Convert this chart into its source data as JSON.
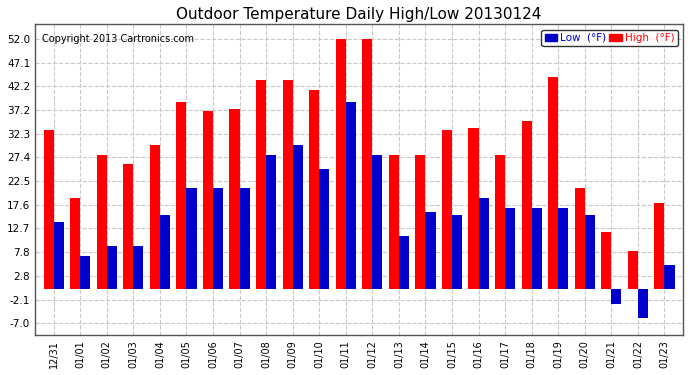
{
  "title": "Outdoor Temperature Daily High/Low 20130124",
  "copyright": "Copyright 2013 Cartronics.com",
  "legend_low": "Low  (°F)",
  "legend_high": "High  (°F)",
  "dates": [
    "12/31",
    "01/01",
    "01/02",
    "01/03",
    "01/04",
    "01/05",
    "01/06",
    "01/07",
    "01/08",
    "01/09",
    "01/10",
    "01/11",
    "01/12",
    "01/13",
    "01/14",
    "01/15",
    "01/16",
    "01/17",
    "01/18",
    "01/19",
    "01/20",
    "01/21",
    "01/22",
    "01/23"
  ],
  "high": [
    33.0,
    19.0,
    28.0,
    26.0,
    30.0,
    39.0,
    37.0,
    37.5,
    43.5,
    43.5,
    41.5,
    52.0,
    52.0,
    28.0,
    28.0,
    33.0,
    33.5,
    28.0,
    35.0,
    44.0,
    21.0,
    12.0,
    8.0,
    18.0
  ],
  "low": [
    14.0,
    7.0,
    9.0,
    9.0,
    15.5,
    21.0,
    21.0,
    21.0,
    28.0,
    30.0,
    25.0,
    39.0,
    28.0,
    11.0,
    16.0,
    15.5,
    19.0,
    17.0,
    17.0,
    17.0,
    15.5,
    -3.0,
    -6.0,
    5.0
  ],
  "high_color": "#ff0000",
  "low_color": "#0000cc",
  "bg_color": "#ffffff",
  "grid_color": "#c8c8c8",
  "yticks": [
    -7.0,
    -2.1,
    2.8,
    7.8,
    12.7,
    17.6,
    22.5,
    27.4,
    32.3,
    37.2,
    42.2,
    47.1,
    52.0
  ],
  "ylim": [
    -9.5,
    55.0
  ],
  "title_fontsize": 11,
  "copyright_fontsize": 7,
  "bar_width": 0.38,
  "figsize": [
    6.9,
    3.75
  ],
  "dpi": 100
}
